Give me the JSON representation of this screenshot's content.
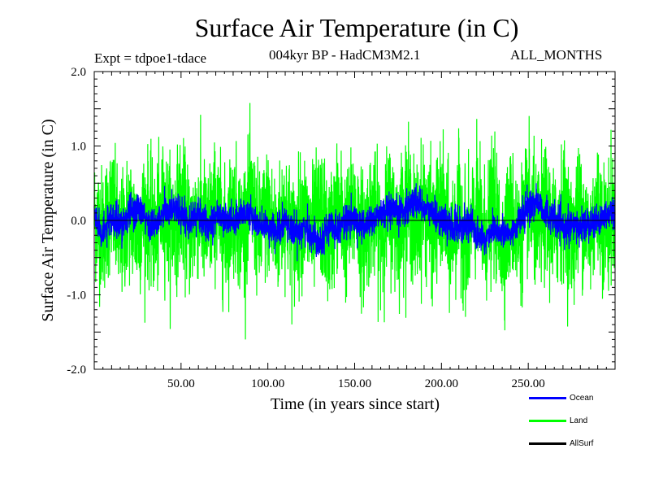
{
  "chart_data": {
    "type": "line",
    "title": "Surface Air Temperature (in C)",
    "expt_label": "Expt = tdpoe1-tdace",
    "subtitle": "004kyr BP - HadCM3M2.1",
    "months_label": "ALL_MONTHS",
    "xlabel": "Time (in years since start)",
    "ylabel": "Surface Air Temperature (in C)",
    "xlim": [
      0,
      300
    ],
    "ylim": [
      -2.0,
      2.0
    ],
    "xticks": [
      50,
      100,
      150,
      200,
      250
    ],
    "xtick_labels": [
      "50.00",
      "100.00",
      "150.00",
      "200.00",
      "250.00"
    ],
    "yticks": [
      -2.0,
      -1.0,
      0.0,
      1.0,
      2.0
    ],
    "ytick_labels": [
      "-2.0",
      "-1.0",
      "0.0",
      "1.0",
      "2.0"
    ],
    "zero_line": true,
    "legend_position": "bottom-right",
    "series": [
      {
        "name": "Land",
        "color": "#00ff00",
        "description": "monthly land surface air temperature anomaly",
        "x_start": 0,
        "x_end": 300,
        "approx_range": [
          -1.6,
          1.75
        ],
        "values_sampled_every_5_years": [
          0.2,
          -0.4,
          0.6,
          -0.9,
          0.3,
          -0.5,
          0.4,
          -0.6,
          0.5,
          -0.3,
          0.7,
          -0.5,
          0.3,
          -0.4,
          0.6,
          -0.7,
          0.5,
          -0.4,
          0.8,
          -0.6,
          0.4,
          -0.7,
          0.5,
          -0.8,
          0.3,
          -0.6,
          0.4,
          -0.9,
          0.6,
          -0.5,
          0.5,
          -0.7,
          0.4,
          -0.6,
          0.5,
          -0.4,
          0.9,
          -0.3,
          0.6,
          -0.5,
          0.5,
          -0.8,
          0.3,
          -0.9,
          0.4,
          -0.6,
          0.5,
          -1.0,
          0.3,
          -0.7,
          0.7,
          -0.5,
          0.4,
          -0.6,
          0.6,
          -0.7,
          0.5,
          -0.6,
          0.6,
          -0.4,
          0.5
        ]
      },
      {
        "name": "Ocean",
        "color": "#0000ff",
        "description": "monthly ocean surface air temperature anomaly",
        "x_start": 0,
        "x_end": 300,
        "approx_range": [
          -0.65,
          0.5
        ],
        "values_sampled_every_5_years": [
          0.1,
          -0.2,
          0.0,
          -0.1,
          0.1,
          0.2,
          0.0,
          -0.1,
          0.1,
          0.2,
          0.1,
          0.0,
          0.1,
          -0.1,
          0.1,
          0.0,
          0.0,
          0.1,
          0.1,
          -0.1,
          -0.1,
          -0.2,
          0.0,
          -0.2,
          -0.1,
          -0.2,
          -0.3,
          -0.1,
          -0.1,
          0.0,
          0.0,
          -0.1,
          0.0,
          0.1,
          0.1,
          0.1,
          0.2,
          0.3,
          0.2,
          0.1,
          0.0,
          -0.1,
          -0.1,
          0.0,
          -0.2,
          -0.3,
          -0.1,
          -0.2,
          -0.2,
          0.0,
          0.2,
          0.3,
          0.1,
          0.0,
          -0.1,
          -0.1,
          -0.1,
          0.0,
          0.0,
          0.1,
          0.1
        ]
      },
      {
        "name": "AllSurf",
        "color": "#000000",
        "description": "legend entry only; not visibly plotted",
        "values_sampled_every_5_years": []
      }
    ]
  }
}
